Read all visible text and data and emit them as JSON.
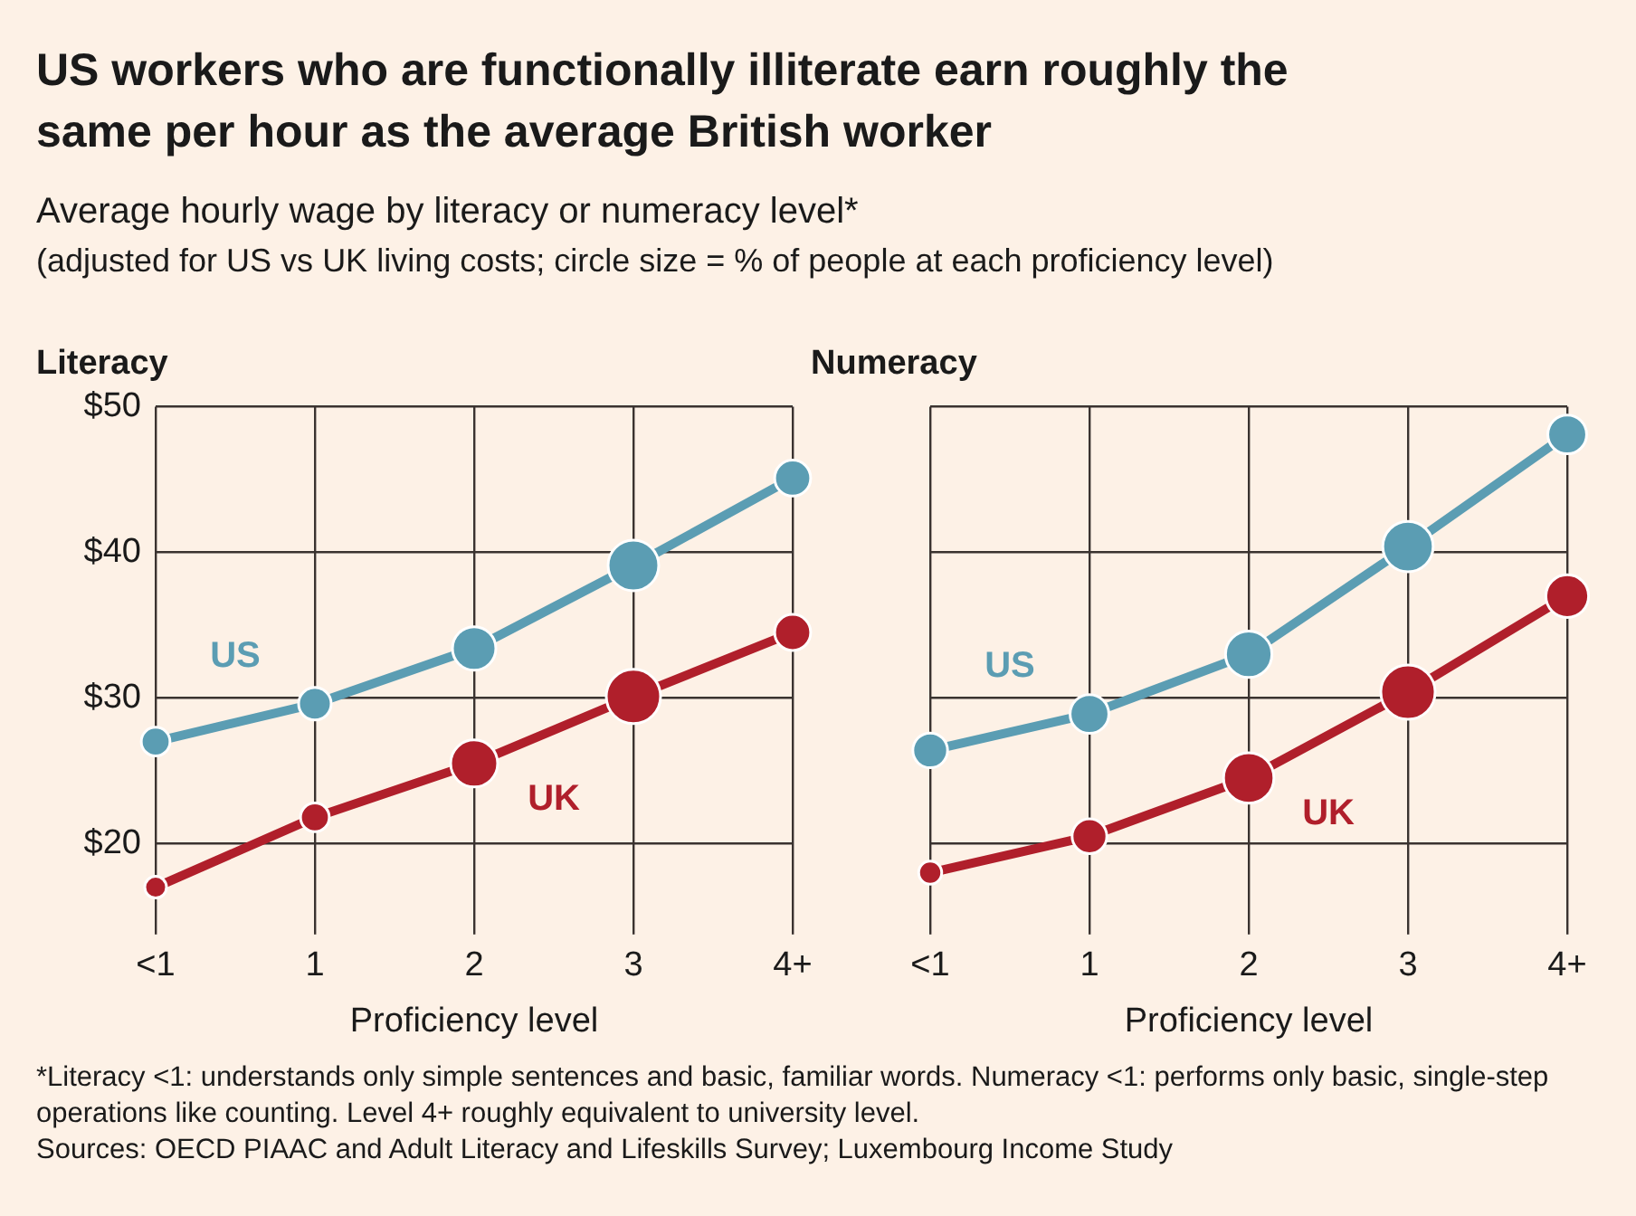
{
  "chart_data": [
    {
      "type": "other",
      "title": "US workers who are functionally illiterate earn roughly the same per hour as the average British worker",
      "subtitle": "Average hourly wage by literacy or numeracy level*",
      "annotations": [
        "(adjusted for US vs UK living costs; circle size = % of people at each proficiency level)"
      ]
    },
    {
      "type": "bubble",
      "title": "Literacy",
      "xlabel": "Proficiency level",
      "categories": [
        "<1",
        "1",
        "2",
        "3",
        "4+"
      ],
      "series": [
        {
          "type": "line",
          "color": "#5b9db3",
          "values": [
            27.0,
            29.6,
            33.4,
            39.1,
            45.1
          ],
          "marker": "none"
        },
        {
          "type": "line",
          "color": "#b01f2b",
          "values": [
            17.0,
            21.8,
            25.5,
            30.1,
            34.5
          ],
          "marker": "none"
        },
        {
          "name": "US",
          "color": "#5b9db3",
          "values": [
            27.0,
            29.6,
            33.4,
            39.1,
            45.1
          ],
          "sizes": [
            0.28,
            0.36,
            0.64,
            0.87,
            0.44
          ],
          "marker": "circle"
        },
        {
          "name": "UK",
          "color": "#b01f2b",
          "values": [
            17.0,
            21.8,
            25.5,
            30.1,
            34.5
          ],
          "sizes": [
            0.16,
            0.28,
            0.75,
            1,
            0.44
          ],
          "marker": "circle"
        }
      ],
      "ylim": [
        15,
        50
      ],
      "yticks": [
        {
          "value": 20,
          "label": "$20"
        },
        {
          "value": 30,
          "label": "$30"
        },
        {
          "value": 40,
          "label": "$40"
        },
        {
          "value": 50,
          "label": "$50"
        }
      ],
      "grid": true,
      "line_style": "solid"
    },
    {
      "type": "bubble",
      "title": "Numeracy",
      "xlabel": "Proficiency level",
      "categories": [
        "<1",
        "1",
        "2",
        "3",
        "4+"
      ],
      "series": [
        {
          "type": "line",
          "color": "#5b9db3",
          "values": [
            26.4,
            28.9,
            33.0,
            40.4,
            48.1
          ],
          "marker": "none"
        },
        {
          "type": "line",
          "color": "#b01f2b",
          "values": [
            18.0,
            20.5,
            24.5,
            30.4,
            37.0
          ],
          "marker": "none"
        },
        {
          "name": "US",
          "color": "#5b9db3",
          "values": [
            26.4,
            28.9,
            33.0,
            40.4,
            48.1
          ],
          "sizes": [
            0.41,
            0.51,
            0.73,
            0.86,
            0.51
          ],
          "marker": "circle"
        },
        {
          "name": "UK",
          "color": "#b01f2b",
          "values": [
            18.0,
            20.5,
            24.5,
            30.4,
            37.0
          ],
          "sizes": [
            0.18,
            0.41,
            0.86,
            1,
            0.62
          ],
          "marker": "circle"
        }
      ],
      "ylim": [
        15,
        50
      ],
      "yticks": [
        20,
        30,
        40,
        50
      ],
      "grid": true,
      "line_style": "solid",
      "tick_labels": "x"
    },
    {
      "type": "other",
      "annotations": [
        "*Literacy <1: understands only simple sentences and basic, familiar words. Numeracy <1: performs only basic, single-step operations like counting. Level 4+ roughly equivalent to university level.",
        "Sources: OECD PIAAC and Adult Literacy and Lifeskills Survey; Luxembourg Income Study"
      ]
    }
  ]
}
